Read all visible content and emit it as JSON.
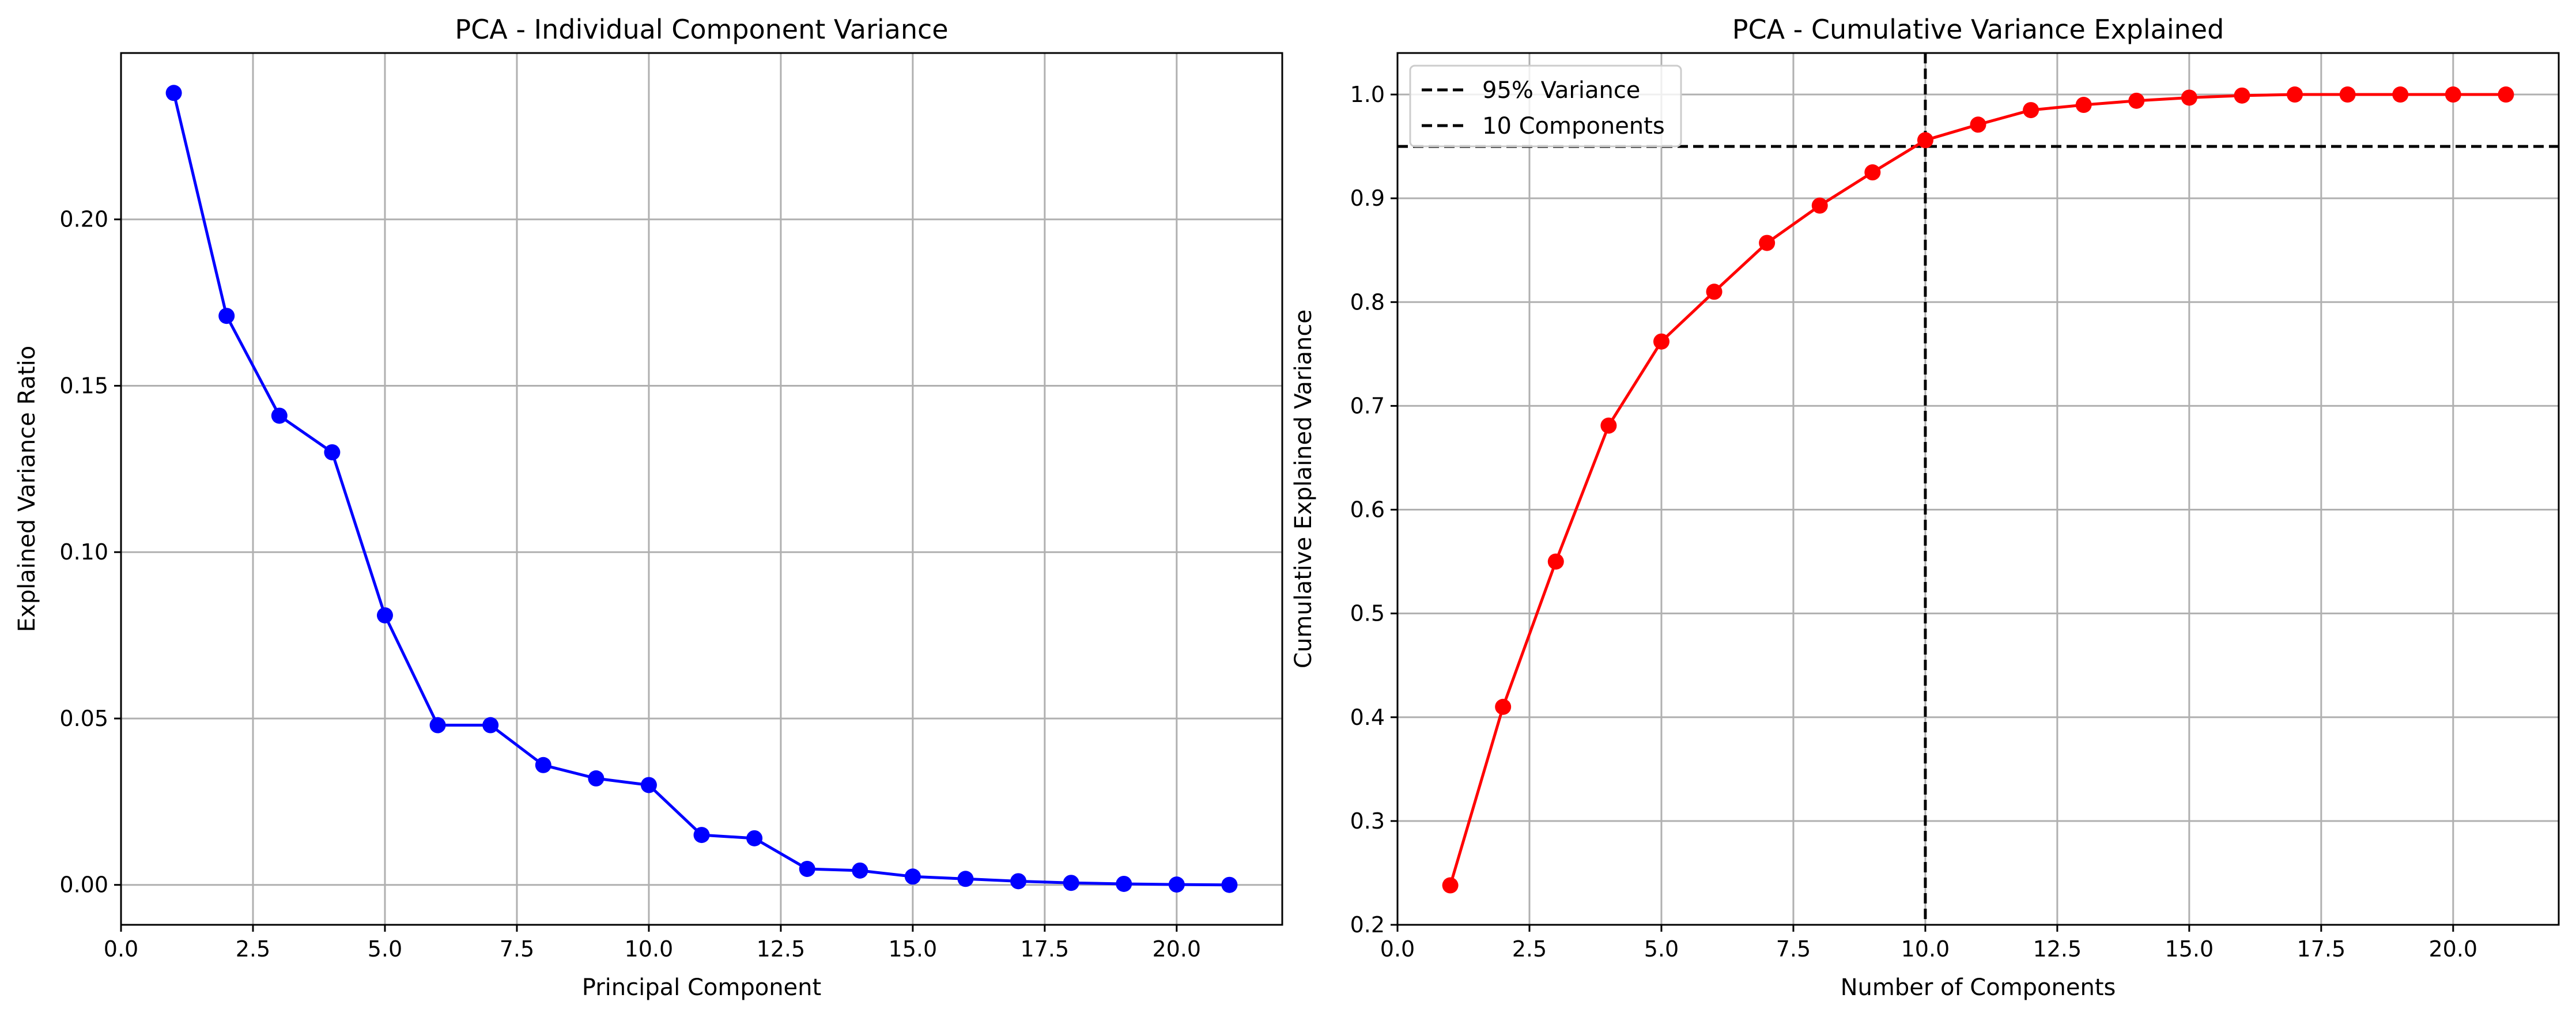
{
  "chart_data": [
    {
      "type": "line",
      "title": "PCA - Individual Component Variance",
      "xlabel": "Principal Component",
      "ylabel": "Explained Variance Ratio",
      "xlim": [
        0,
        22
      ],
      "ylim": [
        -0.012,
        0.25
      ],
      "xticks": [
        0,
        2.5,
        5,
        7.5,
        10,
        12.5,
        15,
        17.5,
        20
      ],
      "xtick_labels": [
        "0.0",
        "2.5",
        "5.0",
        "7.5",
        "10.0",
        "12.5",
        "15.0",
        "17.5",
        "20.0"
      ],
      "yticks": [
        0,
        0.05,
        0.1,
        0.15,
        0.2
      ],
      "ytick_labels": [
        "0.00",
        "0.05",
        "0.10",
        "0.15",
        "0.20"
      ],
      "grid": true,
      "series": [
        {
          "color": "#0000ff",
          "marker": "circle",
          "x": [
            1,
            2,
            3,
            4,
            5,
            6,
            7,
            8,
            9,
            10,
            11,
            12,
            13,
            14,
            15,
            16,
            17,
            18,
            19,
            20,
            21
          ],
          "values": [
            0.238,
            0.171,
            0.141,
            0.13,
            0.081,
            0.048,
            0.048,
            0.036,
            0.032,
            0.03,
            0.015,
            0.014,
            0.0048,
            0.0043,
            0.0025,
            0.0018,
            0.0011,
            0.0006,
            0.0003,
            0.0001,
            0.0
          ]
        }
      ]
    },
    {
      "type": "line",
      "title": "PCA - Cumulative Variance Explained",
      "xlabel": "Number of Components",
      "ylabel": "Cumulative Explained Variance",
      "xlim": [
        0,
        22
      ],
      "ylim": [
        0.2,
        1.04
      ],
      "xticks": [
        0,
        2.5,
        5,
        7.5,
        10,
        12.5,
        15,
        17.5,
        20
      ],
      "xtick_labels": [
        "0.0",
        "2.5",
        "5.0",
        "7.5",
        "10.0",
        "12.5",
        "15.0",
        "17.5",
        "20.0"
      ],
      "yticks": [
        0.2,
        0.3,
        0.4,
        0.5,
        0.6,
        0.7,
        0.8,
        0.9,
        1.0
      ],
      "ytick_labels": [
        "0.2",
        "0.3",
        "0.4",
        "0.5",
        "0.6",
        "0.7",
        "0.8",
        "0.9",
        "1.0"
      ],
      "grid": true,
      "legend_position": "top-left",
      "series": [
        {
          "color": "#ff0000",
          "marker": "circle",
          "x": [
            1,
            2,
            3,
            4,
            5,
            6,
            7,
            8,
            9,
            10,
            11,
            12,
            13,
            14,
            15,
            16,
            17,
            18,
            19,
            20,
            21
          ],
          "values": [
            0.238,
            0.41,
            0.55,
            0.681,
            0.762,
            0.81,
            0.857,
            0.893,
            0.925,
            0.956,
            0.971,
            0.985,
            0.99,
            0.994,
            0.997,
            0.999,
            1.0,
            1.0,
            1.0,
            1.0,
            1.0
          ]
        }
      ],
      "reference_lines": [
        {
          "orientation": "horizontal",
          "value": 0.95,
          "label": "95% Variance",
          "color": "#000000",
          "style": "dashed"
        },
        {
          "orientation": "vertical",
          "value": 10,
          "label": "10 Components",
          "color": "#000000",
          "style": "dashed"
        }
      ]
    }
  ]
}
